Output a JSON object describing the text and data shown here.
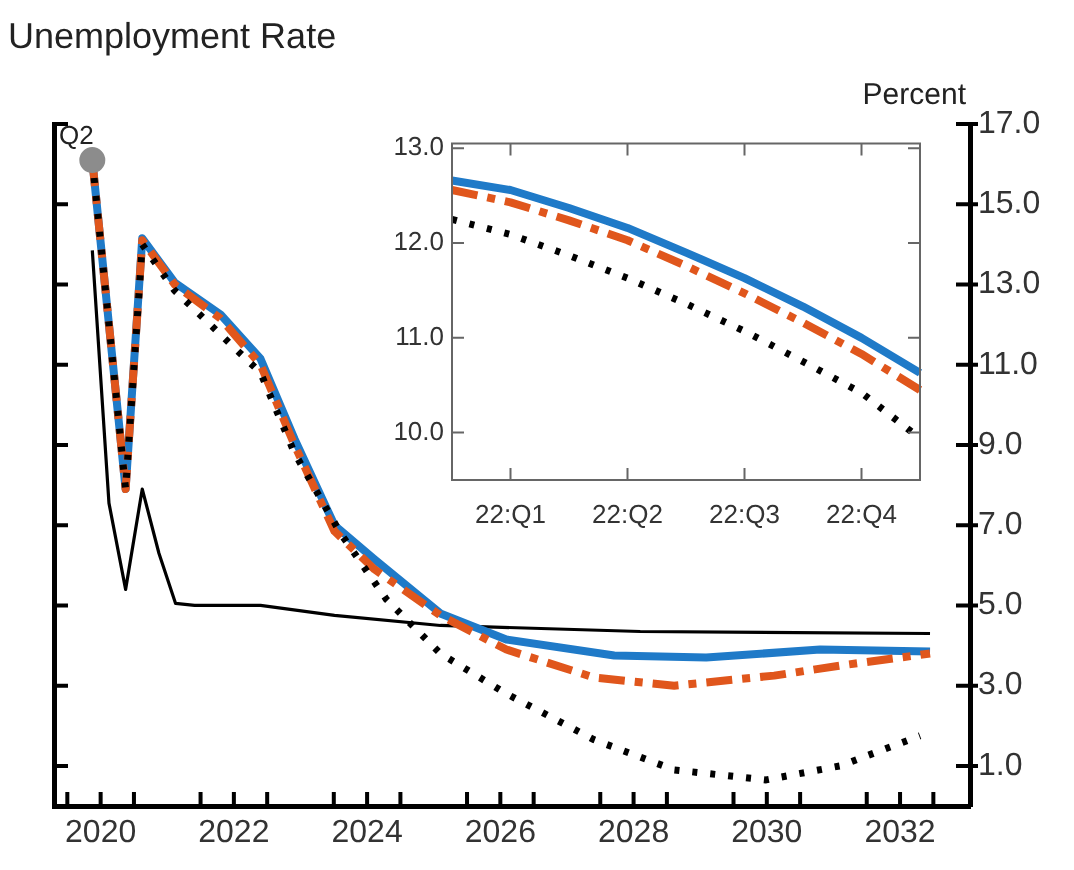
{
  "chart_data": [
    {
      "type": "line",
      "title": "Unemployment Rate",
      "ylabel": "Percent",
      "xlim": [
        2019.8,
        2033.55
      ],
      "ylim": [
        0,
        17
      ],
      "xticks": [
        {
          "value": 2020,
          "label": null
        },
        {
          "value": 2020.5,
          "label": "2020"
        },
        {
          "value": 2021,
          "label": null
        },
        {
          "value": 2022,
          "label": null
        },
        {
          "value": 2022.5,
          "label": "2022"
        },
        {
          "value": 2023,
          "label": null
        },
        {
          "value": 2024,
          "label": null
        },
        {
          "value": 2024.5,
          "label": "2024"
        },
        {
          "value": 2025,
          "label": null
        },
        {
          "value": 2026,
          "label": null
        },
        {
          "value": 2026.5,
          "label": "2026"
        },
        {
          "value": 2027,
          "label": null
        },
        {
          "value": 2028,
          "label": null
        },
        {
          "value": 2028.5,
          "label": "2028"
        },
        {
          "value": 2029,
          "label": null
        },
        {
          "value": 2030,
          "label": null
        },
        {
          "value": 2030.5,
          "label": "2030"
        },
        {
          "value": 2031,
          "label": null
        },
        {
          "value": 2032,
          "label": null
        },
        {
          "value": 2032.5,
          "label": "2032"
        },
        {
          "value": 2033,
          "label": null
        }
      ],
      "yticks": [
        {
          "value": 1,
          "label": "1.0"
        },
        {
          "value": 3,
          "label": "3.0"
        },
        {
          "value": 5,
          "label": "5.0"
        },
        {
          "value": 7,
          "label": "7.0"
        },
        {
          "value": 9,
          "label": "9.0"
        },
        {
          "value": 11,
          "label": "11.0"
        },
        {
          "value": 13,
          "label": "13.0"
        },
        {
          "value": 15,
          "label": "15.0"
        },
        {
          "value": 17,
          "label": "17.0"
        }
      ],
      "grid": false,
      "marker": "none",
      "annotations": [
        {
          "text": "Q2",
          "x": 2020.375,
          "y": 16.1
        }
      ],
      "series": [
        {
          "color": "#000000",
          "line_style": "solid",
          "x": [
            2020.375,
            2020.625,
            2020.875,
            2021.125,
            2021.375,
            2021.625,
            2021.91,
            2022.9,
            2024.01,
            2025.6,
            2028.6,
            2032.95
          ],
          "values": [
            13.85,
            7.55,
            5.4,
            7.9,
            6.3,
            5.05,
            5.0,
            5.0,
            4.75,
            4.5,
            4.35,
            4.3
          ]
        },
        {
          "color": "#1f7ac8",
          "line_style": "solid",
          "x": [
            2020.375,
            2020.625,
            2020.875,
            2021.125,
            2021.61,
            2022.3,
            2022.9,
            2023.41,
            2024.01,
            2024.61,
            2025.6,
            2026.59,
            2028.21,
            2029.59,
            2031.3,
            2032.95
          ],
          "values": [
            16.1,
            12.0,
            7.9,
            14.15,
            13.05,
            12.25,
            11.15,
            9.15,
            7.0,
            6.15,
            4.8,
            4.15,
            3.75,
            3.7,
            3.9,
            3.85
          ]
        },
        {
          "color": "#e0561c",
          "line_style": "dashed",
          "x": [
            2020.375,
            2020.625,
            2020.875,
            2021.125,
            2021.61,
            2022.3,
            2022.9,
            2023.41,
            2024.01,
            2024.61,
            2025.6,
            2026.59,
            2027.91,
            2029.11,
            2030.61,
            2031.6,
            2032.95
          ],
          "values": [
            16.1,
            12.0,
            7.9,
            14.1,
            13.0,
            12.15,
            11.0,
            9.0,
            6.85,
            5.9,
            4.75,
            3.9,
            3.2,
            3.0,
            3.25,
            3.5,
            3.8
          ]
        },
        {
          "color": "#000000",
          "line_style": "dotted",
          "x": [
            2020.375,
            2020.625,
            2020.875,
            2021.125,
            2021.61,
            2022.9,
            2023.41,
            2024.1,
            2024.79,
            2025.6,
            2026.59,
            2027.91,
            2029.11,
            2030.49,
            2031.6,
            2032.8
          ],
          "values": [
            16.1,
            12.0,
            7.9,
            14.0,
            12.85,
            10.8,
            8.8,
            6.8,
            5.15,
            3.8,
            2.8,
            1.65,
            0.9,
            0.65,
            1.0,
            1.75
          ]
        },
        {
          "type": "scatter",
          "marker": "circle",
          "color": "#8c8c8c",
          "x": [
            2020.375
          ],
          "values": [
            16.1
          ]
        }
      ]
    },
    {
      "type": "line",
      "categories": [
        null,
        "22:Q1",
        null,
        "22:Q2",
        null,
        "22:Q3",
        null,
        "22:Q4",
        null
      ],
      "ylim": [
        9.5,
        13.05
      ],
      "yticks": [
        {
          "value": 10,
          "label": "10.0"
        },
        {
          "value": 11,
          "label": "11.0"
        },
        {
          "value": 12,
          "label": "12.0"
        },
        {
          "value": 13,
          "label": "13.0"
        }
      ],
      "grid": false,
      "marker": "none",
      "series": [
        {
          "color": "#1f7ac8",
          "line_style": "solid",
          "values": [
            12.66,
            12.56,
            12.37,
            12.16,
            11.9,
            11.63,
            11.33,
            11.0,
            10.63
          ]
        },
        {
          "color": "#e0561c",
          "line_style": "dashed",
          "values": [
            12.56,
            12.43,
            12.24,
            12.03,
            11.76,
            11.47,
            11.16,
            10.83,
            10.45
          ]
        },
        {
          "color": "#000000",
          "line_style": "dotted",
          "values": [
            12.25,
            12.09,
            11.87,
            11.63,
            11.36,
            11.07,
            10.75,
            10.42,
            9.94
          ]
        }
      ]
    }
  ]
}
